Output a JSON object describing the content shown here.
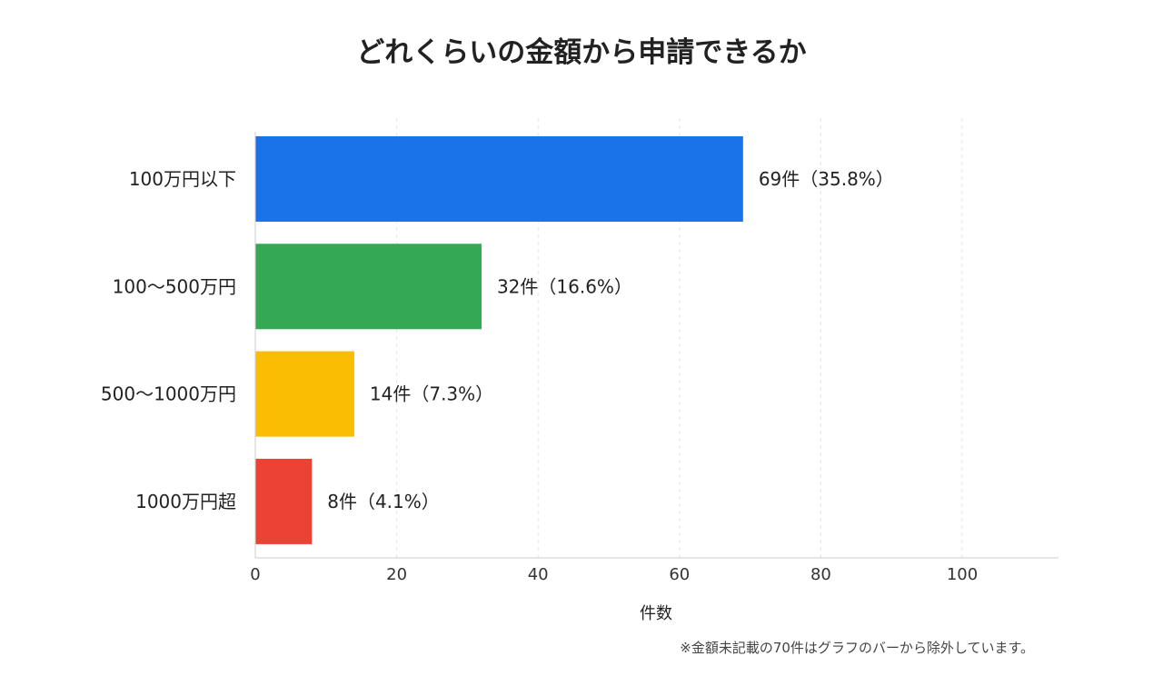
{
  "chart_data": {
    "type": "bar",
    "orientation": "horizontal",
    "title": "どれくらいの金額から申請できるか",
    "categories": [
      "100万円以下",
      "100〜500万円",
      "500〜1000万円",
      "1000万円超"
    ],
    "values": [
      69,
      32,
      14,
      8
    ],
    "data_labels": [
      "69件（35.8%）",
      "32件（16.6%）",
      "14件（7.3%）",
      "8件（4.1%）"
    ],
    "colors": [
      "#1a73e8",
      "#34a853",
      "#fbbc04",
      "#ea4335"
    ],
    "xlabel": "件数",
    "ylabel": "",
    "xlim": [
      0,
      113
    ],
    "x_ticks": [
      0,
      20,
      40,
      60,
      80,
      100
    ],
    "grid": true,
    "footnote": "※金額未記載の70件はグラフのバーから除外しています。"
  }
}
